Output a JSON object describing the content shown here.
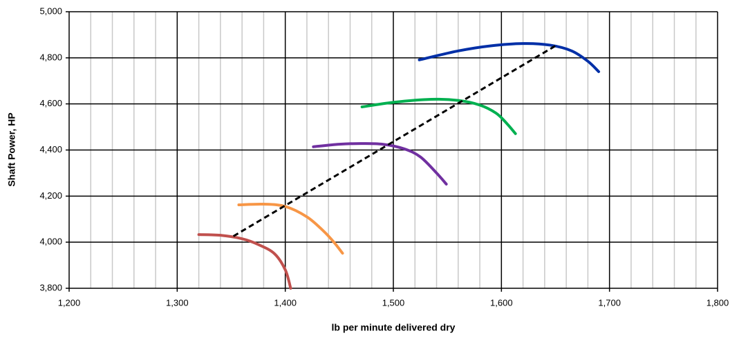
{
  "chart_data": {
    "type": "line",
    "xlabel": "lb per minute delivered dry",
    "ylabel": "Shaft Power, HP",
    "xlim": [
      1200,
      1800
    ],
    "ylim": [
      3800,
      5000
    ],
    "xticks": [
      {
        "value": 1200,
        "label": "1,200"
      },
      {
        "value": 1300,
        "label": "1,300"
      },
      {
        "value": 1400,
        "label": "1,400"
      },
      {
        "value": 1500,
        "label": "1,500"
      },
      {
        "value": 1600,
        "label": "1,600"
      },
      {
        "value": 1700,
        "label": "1,700"
      },
      {
        "value": 1800,
        "label": "1,800"
      }
    ],
    "xminorticks": [
      1220,
      1240,
      1260,
      1280,
      1320,
      1340,
      1360,
      1380,
      1420,
      1440,
      1460,
      1480,
      1520,
      1540,
      1560,
      1580,
      1620,
      1640,
      1660,
      1680,
      1720,
      1740,
      1760,
      1780
    ],
    "yticks": [
      {
        "value": 3800,
        "label": "3,800"
      },
      {
        "value": 4000,
        "label": "4,000"
      },
      {
        "value": 4200,
        "label": "4,200"
      },
      {
        "value": 4400,
        "label": "4,400"
      },
      {
        "value": 4600,
        "label": "4,600"
      },
      {
        "value": 4800,
        "label": "4,800"
      },
      {
        "value": 5000,
        "label": "5,000"
      }
    ],
    "grid": true,
    "series": [
      {
        "color": "#c0504d",
        "x": [
          1320,
          1340,
          1360,
          1375,
          1390,
          1400,
          1405
        ],
        "values": [
          4033,
          4030,
          4015,
          3990,
          3950,
          3880,
          3800
        ]
      },
      {
        "color": "#f79646",
        "x": [
          1357,
          1380,
          1400,
          1420,
          1435,
          1445,
          1453
        ],
        "values": [
          4162,
          4165,
          4155,
          4110,
          4050,
          4000,
          3952
        ]
      },
      {
        "color": "#7030a0",
        "x": [
          1426,
          1450,
          1470,
          1490,
          1510,
          1525,
          1540,
          1549
        ],
        "values": [
          4414,
          4425,
          4428,
          4425,
          4405,
          4370,
          4300,
          4252
        ]
      },
      {
        "color": "#00b050",
        "x": [
          1471,
          1500,
          1535,
          1560,
          1580,
          1595,
          1605,
          1613
        ],
        "values": [
          4587,
          4607,
          4620,
          4615,
          4595,
          4560,
          4515,
          4471
        ]
      },
      {
        "color": "#002fa7",
        "x": [
          1524,
          1560,
          1590,
          1620,
          1645,
          1665,
          1680,
          1690
        ],
        "values": [
          4791,
          4830,
          4852,
          4862,
          4855,
          4830,
          4785,
          4740
        ]
      },
      {
        "color": "#000000",
        "dash": true,
        "x": [
          1352,
          1650
        ],
        "values": [
          4026,
          4852
        ]
      }
    ]
  }
}
